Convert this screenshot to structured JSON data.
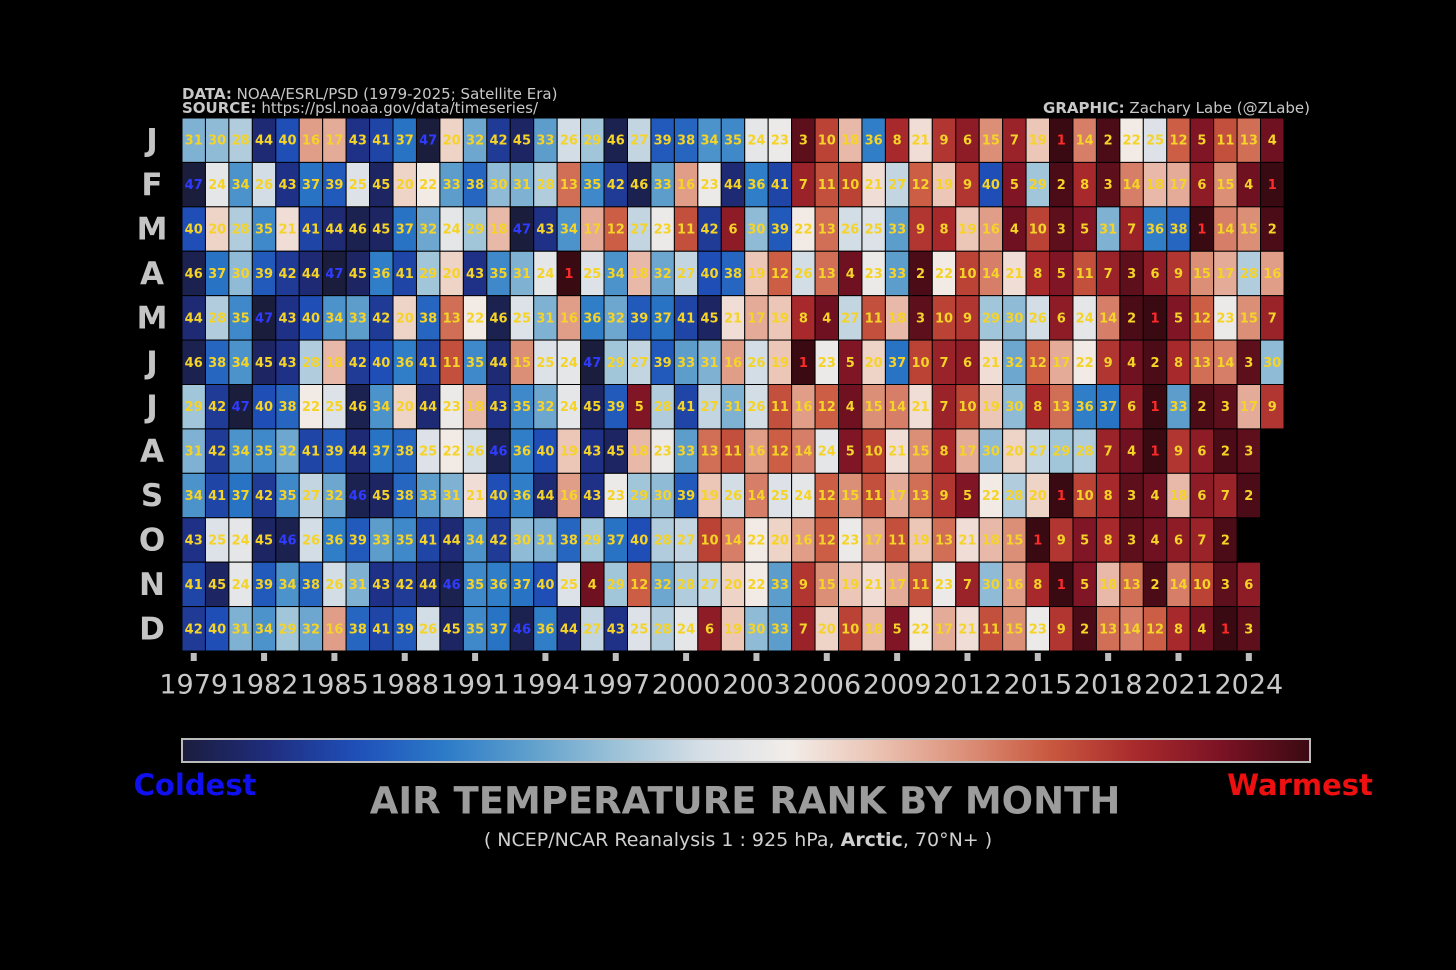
{
  "chart_data": {
    "type": "heatmap",
    "header": {
      "data_key": "DATA:",
      "data_text": "NOAA/ESRL/PSD (1979-2025; Satellite Era)",
      "source_key": "SOURCE:",
      "source_text": "https://psl.noaa.gov/data/timeseries/",
      "graphic_key": "GRAPHIC:",
      "graphic_text": "Zachary Labe (@ZLabe)"
    },
    "title": "AIR TEMPERATURE RANK BY MONTH",
    "subtitle": [
      "( NCEP/NCAR Reanalysis 1 : 925 hPa, ",
      "Arctic",
      ", 70°N+ )"
    ],
    "legend_low": "Coldest",
    "legend_high": "Warmest",
    "legend_low_color": "#1010ee",
    "legend_high_color": "#ee1010",
    "x": [
      1979,
      1980,
      1981,
      1982,
      1983,
      1984,
      1985,
      1986,
      1987,
      1988,
      1989,
      1990,
      1991,
      1992,
      1993,
      1994,
      1995,
      1996,
      1997,
      1998,
      1999,
      2000,
      2001,
      2002,
      2003,
      2004,
      2005,
      2006,
      2007,
      2008,
      2009,
      2010,
      2011,
      2012,
      2013,
      2014,
      2015,
      2016,
      2017,
      2018,
      2019,
      2020,
      2021,
      2022,
      2023,
      2024,
      2025
    ],
    "xticks": [
      1979,
      1982,
      1985,
      1988,
      1991,
      1994,
      1997,
      2000,
      2003,
      2006,
      2009,
      2012,
      2015,
      2018,
      2021,
      2024
    ],
    "y": [
      "J",
      "F",
      "M",
      "A",
      "M",
      "J",
      "J",
      "A",
      "S",
      "O",
      "N",
      "D"
    ],
    "values": [
      [
        31,
        30,
        28,
        44,
        40,
        16,
        17,
        43,
        41,
        37,
        47,
        20,
        32,
        42,
        45,
        33,
        26,
        29,
        46,
        27,
        39,
        38,
        34,
        35,
        24,
        23,
        3,
        10,
        18,
        36,
        8,
        21,
        9,
        6,
        15,
        7,
        19,
        1,
        14,
        2,
        22,
        25,
        12,
        5,
        11,
        13,
        4
      ],
      [
        47,
        24,
        34,
        26,
        43,
        37,
        39,
        25,
        45,
        20,
        22,
        33,
        38,
        30,
        31,
        28,
        13,
        35,
        42,
        46,
        33,
        16,
        23,
        44,
        36,
        41,
        7,
        11,
        10,
        21,
        27,
        12,
        19,
        9,
        40,
        5,
        29,
        2,
        8,
        3,
        14,
        18,
        17,
        6,
        15,
        4,
        1
      ],
      [
        40,
        20,
        28,
        35,
        21,
        41,
        44,
        46,
        45,
        37,
        32,
        24,
        29,
        18,
        47,
        43,
        34,
        17,
        12,
        27,
        23,
        11,
        42,
        6,
        30,
        39,
        22,
        13,
        26,
        25,
        33,
        9,
        8,
        19,
        16,
        4,
        10,
        3,
        5,
        31,
        7,
        36,
        38,
        1,
        14,
        15,
        2
      ],
      [
        46,
        37,
        30,
        39,
        42,
        44,
        47,
        45,
        36,
        41,
        29,
        20,
        43,
        35,
        31,
        24,
        1,
        25,
        34,
        18,
        32,
        27,
        40,
        38,
        19,
        12,
        26,
        13,
        4,
        23,
        33,
        2,
        22,
        10,
        14,
        21,
        8,
        5,
        11,
        7,
        3,
        6,
        9,
        15,
        17,
        28,
        16
      ],
      [
        44,
        28,
        35,
        47,
        43,
        40,
        34,
        33,
        42,
        20,
        38,
        13,
        22,
        46,
        25,
        31,
        16,
        36,
        32,
        39,
        37,
        41,
        45,
        21,
        17,
        19,
        8,
        4,
        27,
        11,
        18,
        3,
        10,
        9,
        29,
        30,
        26,
        6,
        24,
        14,
        2,
        1,
        5,
        12,
        23,
        15,
        7
      ],
      [
        46,
        38,
        34,
        45,
        43,
        28,
        18,
        42,
        40,
        36,
        41,
        11,
        35,
        44,
        15,
        25,
        24,
        47,
        29,
        27,
        39,
        33,
        31,
        16,
        26,
        19,
        1,
        23,
        5,
        20,
        37,
        10,
        7,
        6,
        21,
        32,
        12,
        17,
        22,
        9,
        4,
        2,
        8,
        13,
        14,
        3,
        30
      ],
      [
        29,
        42,
        47,
        40,
        38,
        22,
        25,
        46,
        34,
        20,
        44,
        23,
        18,
        43,
        35,
        32,
        24,
        45,
        39,
        5,
        28,
        41,
        27,
        31,
        26,
        11,
        16,
        12,
        4,
        15,
        14,
        21,
        7,
        10,
        19,
        30,
        8,
        13,
        36,
        37,
        6,
        1,
        33,
        2,
        3,
        17,
        9
      ],
      [
        31,
        42,
        34,
        35,
        32,
        41,
        39,
        44,
        37,
        38,
        25,
        22,
        26,
        46,
        36,
        40,
        19,
        43,
        45,
        18,
        23,
        33,
        13,
        11,
        16,
        12,
        14,
        24,
        5,
        10,
        21,
        15,
        8,
        17,
        30,
        20,
        27,
        29,
        28,
        7,
        4,
        1,
        9,
        6,
        2,
        3,
        null
      ],
      [
        34,
        41,
        37,
        42,
        35,
        27,
        32,
        46,
        45,
        38,
        33,
        31,
        21,
        40,
        36,
        44,
        16,
        43,
        23,
        29,
        30,
        39,
        19,
        26,
        14,
        25,
        24,
        12,
        15,
        11,
        17,
        13,
        9,
        5,
        22,
        28,
        20,
        1,
        10,
        8,
        3,
        4,
        18,
        6,
        7,
        2,
        null
      ],
      [
        43,
        25,
        24,
        45,
        46,
        26,
        36,
        39,
        33,
        35,
        41,
        44,
        34,
        42,
        30,
        31,
        38,
        29,
        37,
        40,
        28,
        27,
        10,
        14,
        22,
        20,
        16,
        12,
        23,
        17,
        11,
        19,
        13,
        21,
        18,
        15,
        1,
        9,
        5,
        8,
        3,
        4,
        6,
        7,
        2,
        null,
        null
      ],
      [
        41,
        45,
        24,
        39,
        34,
        38,
        26,
        31,
        43,
        42,
        44,
        46,
        35,
        36,
        37,
        40,
        25,
        4,
        29,
        12,
        32,
        28,
        27,
        20,
        22,
        33,
        9,
        15,
        19,
        21,
        17,
        11,
        23,
        7,
        30,
        16,
        8,
        1,
        5,
        18,
        13,
        2,
        14,
        10,
        3,
        6,
        null
      ],
      [
        42,
        40,
        31,
        34,
        29,
        32,
        16,
        38,
        41,
        39,
        26,
        45,
        35,
        37,
        46,
        36,
        44,
        27,
        43,
        25,
        28,
        24,
        6,
        19,
        30,
        33,
        7,
        20,
        10,
        18,
        5,
        22,
        17,
        21,
        11,
        15,
        23,
        9,
        2,
        13,
        14,
        12,
        8,
        4,
        1,
        3,
        null
      ]
    ],
    "clim": [
      1,
      47
    ],
    "colormap": [
      "#1b1d3d",
      "#1f2d7e",
      "#1f4fb8",
      "#2b7ac8",
      "#5e9fcc",
      "#9cc2d8",
      "#d6dfe6",
      "#f2ede9",
      "#ebc3b3",
      "#dc917a",
      "#c9583f",
      "#a82a2c",
      "#7a1224",
      "#3a0a12"
    ],
    "cell_label_color": "#f5d327",
    "coldest_label_color": "#2f3cff",
    "warmest_label_color": "#ff2a2a"
  }
}
